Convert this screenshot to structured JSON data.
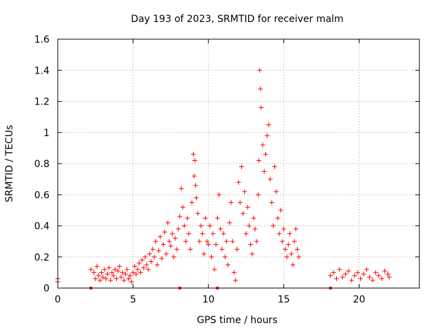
{
  "chart_data": {
    "type": "scatter",
    "title": "Day 193 of 2023, SRMTID for receiver malm",
    "xlabel": "GPS time / hours",
    "ylabel": "SRMTID / TECUs",
    "xlim": [
      0,
      24
    ],
    "ylim": [
      0,
      1.6
    ],
    "x_ticks": [
      0,
      5,
      10,
      15,
      20
    ],
    "x_tick_labels": [
      "0",
      "5",
      "10",
      "15",
      "20"
    ],
    "y_ticks": [
      0,
      0.2,
      0.4,
      0.6,
      0.8,
      1.0,
      1.2,
      1.4,
      1.6
    ],
    "y_tick_labels": [
      "0",
      "0.2",
      "0.4",
      "0.6",
      "0.8",
      "1",
      "1.2",
      "1.4",
      "1.6"
    ],
    "grid": true,
    "marker": "+",
    "color": "#ff0000",
    "data_gap_markers_x": [
      2.2,
      8.1,
      10.6,
      18.1
    ],
    "series": [
      {
        "name": "SRMTID",
        "x": [
          0.0,
          0.0,
          2.2,
          2.4,
          2.5,
          2.6,
          2.7,
          2.8,
          2.9,
          3.0,
          3.1,
          3.2,
          3.3,
          3.4,
          3.5,
          3.6,
          3.7,
          3.8,
          3.9,
          4.0,
          4.1,
          4.2,
          4.3,
          4.4,
          4.5,
          4.6,
          4.7,
          4.8,
          4.9,
          5.0,
          5.1,
          5.2,
          5.3,
          5.4,
          5.5,
          5.6,
          5.7,
          5.8,
          5.9,
          6.0,
          6.1,
          6.2,
          6.3,
          6.4,
          6.5,
          6.6,
          6.7,
          6.8,
          6.9,
          7.0,
          7.1,
          7.2,
          7.3,
          7.4,
          7.5,
          7.6,
          7.7,
          7.8,
          7.9,
          8.0,
          8.1,
          8.2,
          8.3,
          8.4,
          8.5,
          8.6,
          8.7,
          8.8,
          8.9,
          9.0,
          9.05,
          9.1,
          9.15,
          9.2,
          9.3,
          9.4,
          9.5,
          9.6,
          9.7,
          9.8,
          9.9,
          10.0,
          10.1,
          10.2,
          10.3,
          10.4,
          10.5,
          10.6,
          10.7,
          10.8,
          10.9,
          11.0,
          11.1,
          11.2,
          11.3,
          11.4,
          11.5,
          11.6,
          11.7,
          11.8,
          11.9,
          12.0,
          12.1,
          12.2,
          12.3,
          12.4,
          12.5,
          12.6,
          12.7,
          12.8,
          12.9,
          13.0,
          13.1,
          13.2,
          13.3,
          13.35,
          13.4,
          13.45,
          13.5,
          13.6,
          13.7,
          13.8,
          13.9,
          14.0,
          14.1,
          14.2,
          14.3,
          14.4,
          14.5,
          14.6,
          14.7,
          14.8,
          14.9,
          15.0,
          15.1,
          15.2,
          15.3,
          15.4,
          15.5,
          15.6,
          15.7,
          15.8,
          15.9,
          16.0,
          18.1,
          18.3,
          18.5,
          18.7,
          18.9,
          19.1,
          19.3,
          19.5,
          19.7,
          19.9,
          20.1,
          20.3,
          20.5,
          20.7,
          20.9,
          21.1,
          21.3,
          21.5,
          21.7,
          21.9,
          22.0
        ],
        "y": [
          0.06,
          0.04,
          0.12,
          0.1,
          0.06,
          0.14,
          0.08,
          0.05,
          0.1,
          0.07,
          0.12,
          0.06,
          0.09,
          0.13,
          0.05,
          0.1,
          0.08,
          0.12,
          0.06,
          0.11,
          0.14,
          0.07,
          0.1,
          0.05,
          0.09,
          0.12,
          0.06,
          0.08,
          0.04,
          0.1,
          0.14,
          0.09,
          0.12,
          0.16,
          0.1,
          0.18,
          0.13,
          0.2,
          0.15,
          0.12,
          0.22,
          0.17,
          0.25,
          0.2,
          0.3,
          0.15,
          0.24,
          0.33,
          0.19,
          0.28,
          0.36,
          0.22,
          0.42,
          0.3,
          0.27,
          0.35,
          0.2,
          0.32,
          0.25,
          0.38,
          0.46,
          0.64,
          0.52,
          0.4,
          0.3,
          0.45,
          0.35,
          0.25,
          0.55,
          0.86,
          0.72,
          0.82,
          0.66,
          0.58,
          0.48,
          0.3,
          0.4,
          0.35,
          0.22,
          0.45,
          0.3,
          0.28,
          0.4,
          0.2,
          0.35,
          0.12,
          0.28,
          0.45,
          0.6,
          0.38,
          0.25,
          0.35,
          0.2,
          0.3,
          0.15,
          0.42,
          0.55,
          0.3,
          0.1,
          0.05,
          0.25,
          0.68,
          0.55,
          0.78,
          0.48,
          0.62,
          0.35,
          0.52,
          0.4,
          0.28,
          0.22,
          0.45,
          0.38,
          0.3,
          0.6,
          0.82,
          1.4,
          1.28,
          1.16,
          0.92,
          0.75,
          0.86,
          0.98,
          1.05,
          0.7,
          0.55,
          0.4,
          0.78,
          0.62,
          0.45,
          0.35,
          0.5,
          0.3,
          0.38,
          0.25,
          0.2,
          0.28,
          0.35,
          0.22,
          0.15,
          0.3,
          0.38,
          0.25,
          0.2,
          0.08,
          0.1,
          0.06,
          0.12,
          0.07,
          0.09,
          0.11,
          0.05,
          0.08,
          0.1,
          0.06,
          0.09,
          0.12,
          0.07,
          0.05,
          0.1,
          0.08,
          0.06,
          0.11,
          0.09,
          0.07
        ]
      }
    ]
  }
}
